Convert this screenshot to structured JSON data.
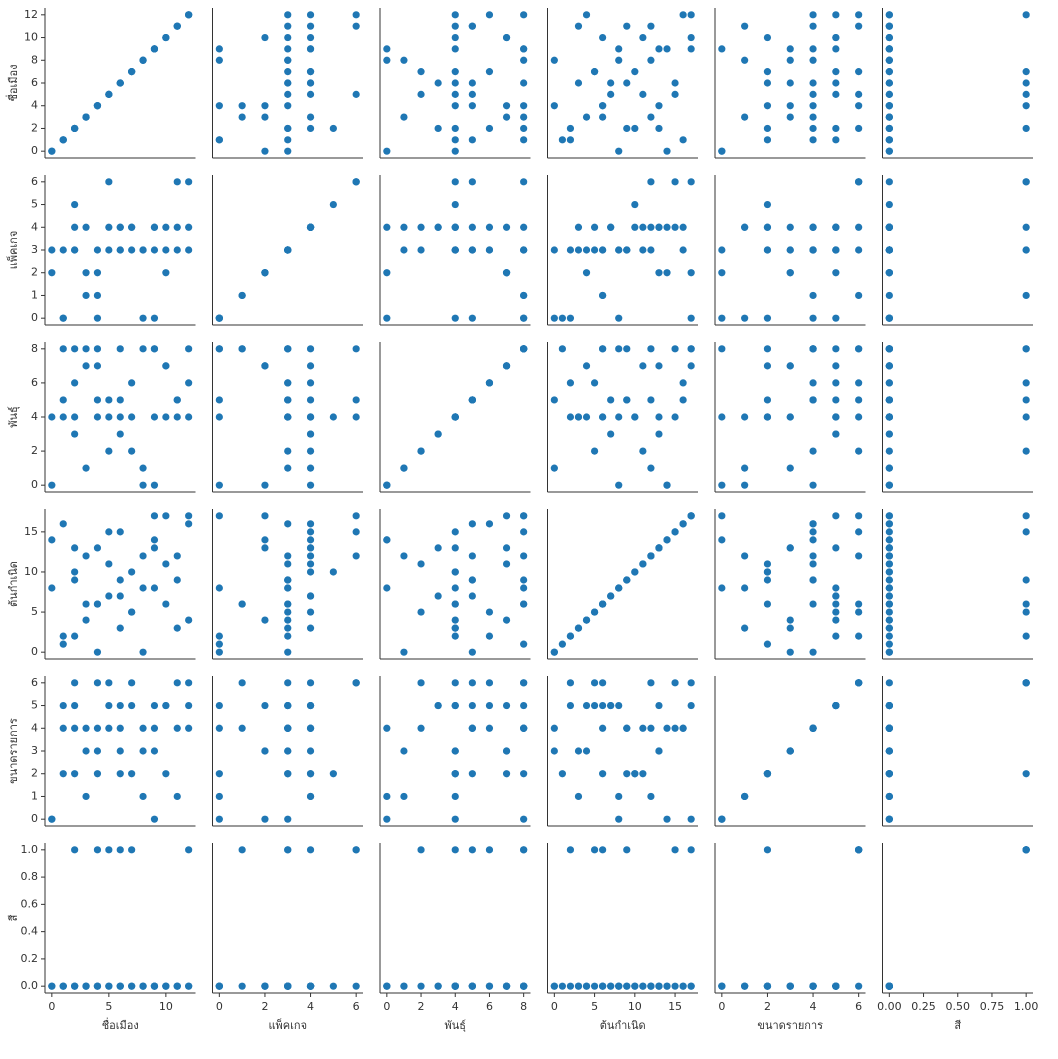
{
  "chart_data": {
    "type": "scatter",
    "color": "#1f77b4",
    "variables": [
      {
        "name": "ชื่อเมือง",
        "lim": [
          -0.6,
          12.6
        ],
        "yticks": [
          0,
          2,
          4,
          6,
          8,
          10,
          12
        ],
        "xticks": [
          0,
          5,
          10
        ],
        "values": [
          0,
          1,
          1,
          2,
          2,
          3,
          3,
          4,
          4,
          5,
          5,
          6,
          6,
          7,
          7,
          8,
          8,
          9,
          9,
          10,
          10,
          11,
          11,
          12,
          12,
          0,
          1,
          2,
          3,
          4,
          5,
          6,
          7,
          8,
          9,
          10,
          11,
          12,
          2,
          4,
          6,
          9
        ]
      },
      {
        "name": "แพ็คเกจ",
        "lim": [
          -0.3,
          6.3
        ],
        "yticks": [
          0,
          1,
          2,
          3,
          4,
          5,
          6
        ],
        "xticks": [
          0,
          2,
          4,
          6
        ],
        "values": [
          3,
          0,
          0,
          3,
          4,
          2,
          4,
          0,
          3,
          3,
          4,
          3,
          4,
          3,
          4,
          0,
          3,
          3,
          4,
          3,
          4,
          4,
          3,
          6,
          3,
          2,
          3,
          5,
          1,
          2,
          6,
          4,
          4,
          3,
          4,
          2,
          6,
          4,
          3,
          1,
          3,
          0
        ]
      },
      {
        "name": "พันธุ์",
        "lim": [
          -0.4,
          8.4
        ],
        "yticks": [
          0,
          2,
          4,
          6,
          8
        ],
        "xticks": [
          0,
          2,
          4,
          6,
          8
        ],
        "values": [
          4,
          4,
          8,
          8,
          3,
          7,
          1,
          5,
          4,
          2,
          5,
          4,
          8,
          6,
          4,
          0,
          8,
          8,
          4,
          4,
          7,
          4,
          5,
          8,
          4,
          0,
          5,
          4,
          8,
          7,
          4,
          3,
          2,
          1,
          0,
          7,
          5,
          6,
          6,
          8,
          5,
          8
        ]
      },
      {
        "name": "ต้นกำเนิด",
        "lim": [
          -0.85,
          17.85
        ],
        "yticks": [
          0,
          5,
          10,
          15
        ],
        "xticks": [
          0,
          5,
          10,
          15
        ],
        "values": [
          8,
          2,
          1,
          9,
          13,
          4,
          12,
          0,
          6,
          11,
          7,
          3,
          15,
          5,
          10,
          8,
          12,
          8,
          13,
          6,
          11,
          3,
          9,
          17,
          4,
          14,
          16,
          10,
          6,
          13,
          15,
          7,
          5,
          0,
          14,
          17,
          12,
          16,
          2,
          6,
          9,
          17
        ]
      },
      {
        "name": "ขนาดรายการ",
        "lim": [
          -0.3,
          6.3
        ],
        "yticks": [
          0,
          1,
          2,
          3,
          4,
          5,
          6
        ],
        "xticks": [
          0,
          2,
          4,
          6
        ],
        "values": [
          0,
          5,
          2,
          4,
          5,
          3,
          1,
          4,
          2,
          4,
          5,
          3,
          4,
          5,
          2,
          1,
          4,
          5,
          3,
          5,
          2,
          1,
          4,
          6,
          5,
          0,
          4,
          2,
          4,
          3,
          6,
          5,
          6,
          3,
          4,
          5,
          6,
          4,
          6,
          6,
          2,
          0
        ]
      },
      {
        "name": "สี",
        "lim": [
          -0.05,
          1.05
        ],
        "yticks": [
          {
            "value": 0,
            "label": "0.0"
          },
          {
            "value": 0.2,
            "label": "0.2"
          },
          {
            "value": 0.4,
            "label": "0.4"
          },
          {
            "value": 0.6,
            "label": "0.6"
          },
          {
            "value": 0.8,
            "label": "0.8"
          },
          {
            "value": 1,
            "label": "1.0"
          }
        ],
        "xticks": [
          {
            "value": 0,
            "label": "0.00"
          },
          {
            "value": 0.25,
            "label": "0.25"
          },
          {
            "value": 0.5,
            "label": "0.50"
          },
          {
            "value": 0.75,
            "label": "0.75"
          },
          {
            "value": 1,
            "label": "1.00"
          }
        ],
        "values": [
          0,
          0,
          0,
          0,
          0,
          0,
          0,
          0,
          0,
          0,
          0,
          0,
          0,
          0,
          0,
          0,
          0,
          0,
          0,
          0,
          0,
          0,
          0,
          1,
          0,
          0,
          0,
          0,
          0,
          0,
          1,
          0,
          1,
          0,
          0,
          0,
          0,
          0,
          1,
          1,
          1,
          0
        ]
      }
    ]
  }
}
